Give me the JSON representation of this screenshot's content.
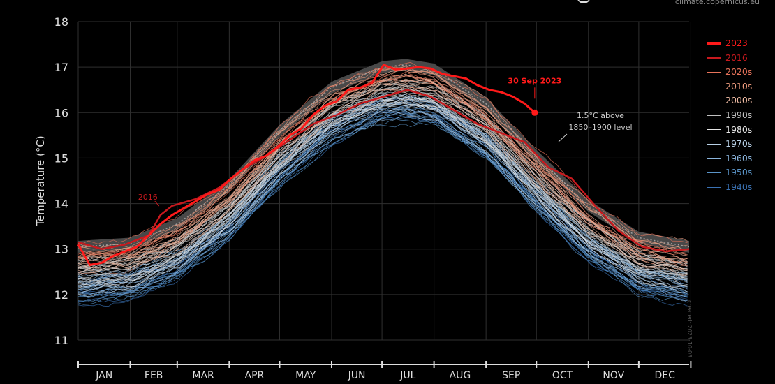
{
  "header": {
    "source_text": "climate.copernicus.eu"
  },
  "watermark": {
    "text": "created: 2023-10-03"
  },
  "colors": {
    "background": "#000000",
    "y2023": "#ff1a1a",
    "y2016": "#c8191e",
    "y2020s": "#e8735a",
    "y2010s": "#eb9a7d",
    "y2000s": "#f0bca4",
    "y1990s": "#c0c0c0",
    "y1980s": "#e6e6e6",
    "y1970s": "#b8d0e6",
    "y1960s": "#8ab4dc",
    "y1950s": "#5a94c8",
    "y1940s": "#3a72b4",
    "threshold_band": "#505050",
    "threshold_line": "#a0a0a0"
  },
  "chart_data": {
    "type": "line",
    "title": "",
    "xlabel": "",
    "ylabel": "Temperature (°C)",
    "ylim": [
      11,
      18
    ],
    "yticks": [
      11,
      12,
      13,
      14,
      15,
      16,
      17,
      18
    ],
    "grid": true,
    "legend_placement": "right",
    "x_unit": "day of year",
    "xlim": [
      1,
      365
    ],
    "months": [
      "JAN",
      "FEB",
      "MAR",
      "APR",
      "MAY",
      "JUN",
      "JUL",
      "AUG",
      "SEP",
      "OCT",
      "NOV",
      "DEC"
    ],
    "month_start_days": [
      1,
      32,
      60,
      91,
      121,
      152,
      182,
      213,
      244,
      274,
      305,
      335,
      366
    ],
    "legend": [
      "2023",
      "2016",
      "2020s",
      "2010s",
      "2000s",
      "1990s",
      "1980s",
      "1970s",
      "1960s",
      "1950s",
      "1940s"
    ],
    "threshold": {
      "label_line1": "1.5°C above",
      "label_line2": "1850–1900 level",
      "x": [
        1,
        32,
        60,
        91,
        121,
        152,
        182,
        196,
        213,
        244,
        274,
        305,
        335,
        365
      ],
      "y": [
        13.05,
        13.12,
        13.55,
        14.4,
        15.6,
        16.55,
        17.0,
        17.05,
        16.95,
        16.2,
        15.05,
        13.95,
        13.25,
        13.05
      ],
      "band_halfwidth": 0.13
    },
    "series": [
      {
        "name": "2023",
        "x": [
          1,
          8,
          15,
          22,
          29,
          36,
          43,
          50,
          57,
          64,
          71,
          78,
          85,
          92,
          99,
          106,
          113,
          120,
          127,
          134,
          141,
          148,
          155,
          162,
          169,
          176,
          183,
          190,
          197,
          204,
          211,
          218,
          225,
          232,
          239,
          246,
          253,
          260,
          267,
          273
        ],
        "y": [
          13.1,
          12.65,
          12.7,
          12.85,
          12.95,
          13.05,
          13.3,
          13.55,
          13.75,
          13.9,
          14.05,
          14.2,
          14.3,
          14.55,
          14.75,
          14.95,
          15.05,
          15.25,
          15.5,
          15.65,
          15.95,
          16.15,
          16.25,
          16.5,
          16.55,
          16.65,
          17.05,
          16.95,
          16.97,
          17.0,
          16.97,
          16.85,
          16.8,
          16.75,
          16.6,
          16.5,
          16.45,
          16.35,
          16.2,
          16.0
        ]
      },
      {
        "name": "2016",
        "x": [
          1,
          15,
          29,
          43,
          50,
          57,
          71,
          85,
          99,
          113,
          127,
          141,
          155,
          169,
          183,
          197,
          211,
          225,
          239,
          253,
          267,
          281,
          295,
          309,
          323,
          337,
          351,
          365
        ],
        "y": [
          13.15,
          13.0,
          13.1,
          13.3,
          13.75,
          13.95,
          14.1,
          14.35,
          14.75,
          15.05,
          15.4,
          15.75,
          15.95,
          16.2,
          16.35,
          16.5,
          16.35,
          16.05,
          15.75,
          15.55,
          15.35,
          14.8,
          14.55,
          13.95,
          13.4,
          13.05,
          12.95,
          13.0
        ]
      }
    ],
    "annotations": [
      {
        "text": "30 Sep 2023",
        "x": 273,
        "y": 16.0
      },
      {
        "text": "2016",
        "x": 50,
        "y": 13.9
      }
    ]
  }
}
